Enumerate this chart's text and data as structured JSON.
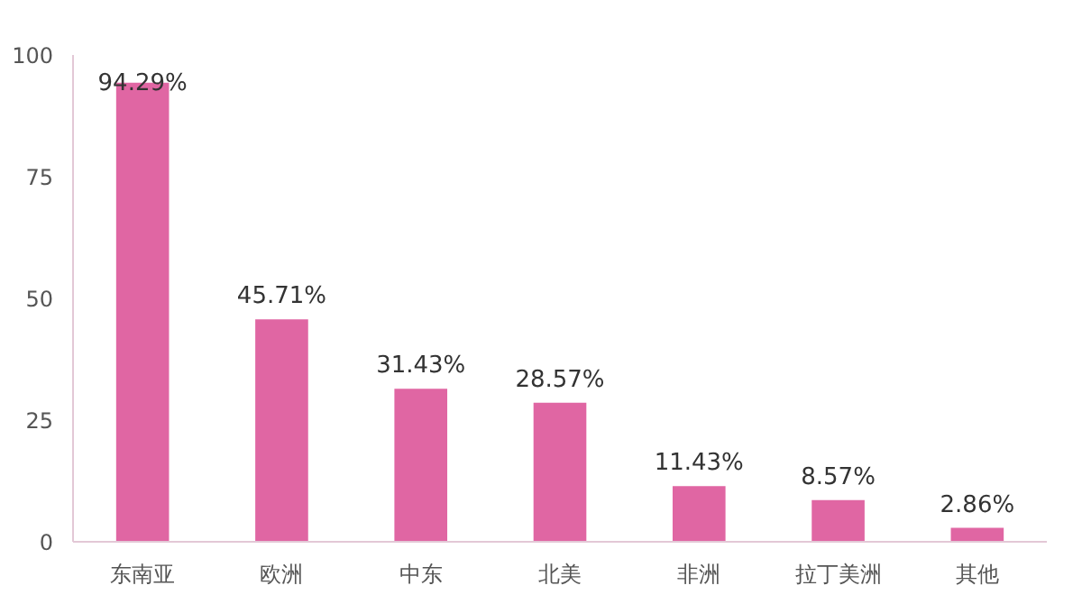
{
  "chart_data": {
    "type": "bar",
    "categories": [
      "东南亚",
      "欧洲",
      "中东",
      "北美",
      "非洲",
      "拉丁美洲",
      "其他"
    ],
    "values": [
      94.29,
      45.71,
      31.43,
      28.57,
      11.43,
      8.57,
      2.86
    ],
    "value_labels": [
      "94.29%",
      "45.71%",
      "31.43%",
      "28.57%",
      "11.43%",
      "8.57%",
      "2.86%"
    ],
    "color": "#e066a3",
    "ylim": [
      0,
      100
    ],
    "yticks": [
      0,
      25,
      50,
      75,
      100
    ],
    "grid": false
  }
}
